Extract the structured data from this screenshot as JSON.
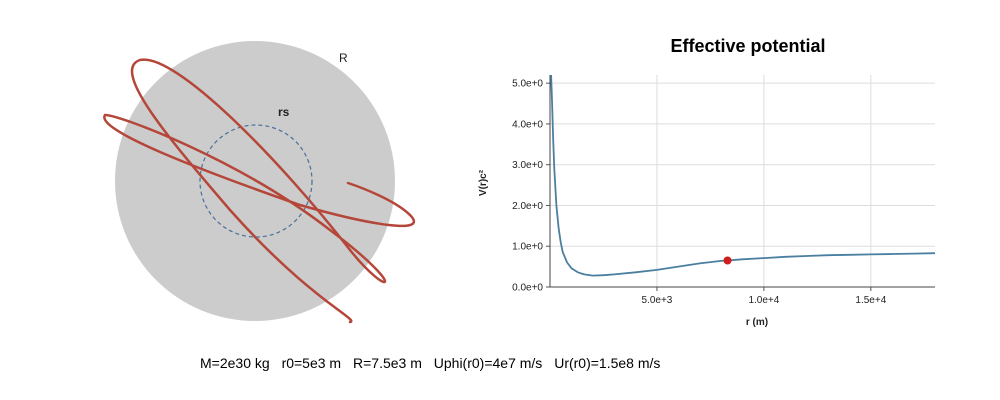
{
  "orbit": {
    "body_label": "R",
    "schwarzschild_label": "rs",
    "colors": {
      "body": "#cccccc",
      "horizon": "#4a6f9a",
      "trajectory": "#b5473a"
    }
  },
  "chart_data": {
    "type": "line",
    "title": "Effective potential",
    "xlabel": "r (m)",
    "ylabel": "V(r)c²",
    "xlim": [
      0,
      18000
    ],
    "ylim": [
      0,
      5.2
    ],
    "x_ticks": [
      "5.0e+3",
      "1.0e+4",
      "1.5e+4"
    ],
    "x_tick_values": [
      5000,
      10000,
      15000
    ],
    "y_ticks": [
      "0.0e+0",
      "1.0e+0",
      "2.0e+0",
      "3.0e+0",
      "4.0e+0",
      "5.0e+0"
    ],
    "y_tick_values": [
      0,
      1,
      2,
      3,
      4,
      5
    ],
    "grid": true,
    "series": [
      {
        "x": [
          50,
          100,
          150,
          200,
          300,
          400,
          500,
          600,
          800,
          1000,
          1300,
          1600,
          2000,
          2500,
          3000,
          4000,
          5000,
          6000,
          7000,
          8000,
          8300,
          9000,
          10000,
          11000,
          12000,
          13000,
          14000,
          15000,
          16000,
          17000,
          18000
        ],
        "y": [
          5.2,
          4.5,
          3.6,
          2.9,
          2.0,
          1.45,
          1.1,
          0.85,
          0.6,
          0.46,
          0.36,
          0.31,
          0.28,
          0.29,
          0.31,
          0.36,
          0.42,
          0.5,
          0.58,
          0.64,
          0.65,
          0.68,
          0.71,
          0.74,
          0.76,
          0.78,
          0.79,
          0.8,
          0.81,
          0.82,
          0.83
        ]
      }
    ],
    "marker": {
      "x": 8300,
      "y": 0.65
    },
    "colors": {
      "line": "#4a7fa0",
      "marker": "#d01c1c",
      "grid": "#dddddd"
    }
  },
  "params": {
    "mass": "M=2e30 kg",
    "r0": "r0=5e3 m",
    "radius": "R=7.5e3 m",
    "uphi": "Uphi(r0)=4e7 m/s",
    "ur": "Ur(r0)=1.5e8 m/s"
  }
}
